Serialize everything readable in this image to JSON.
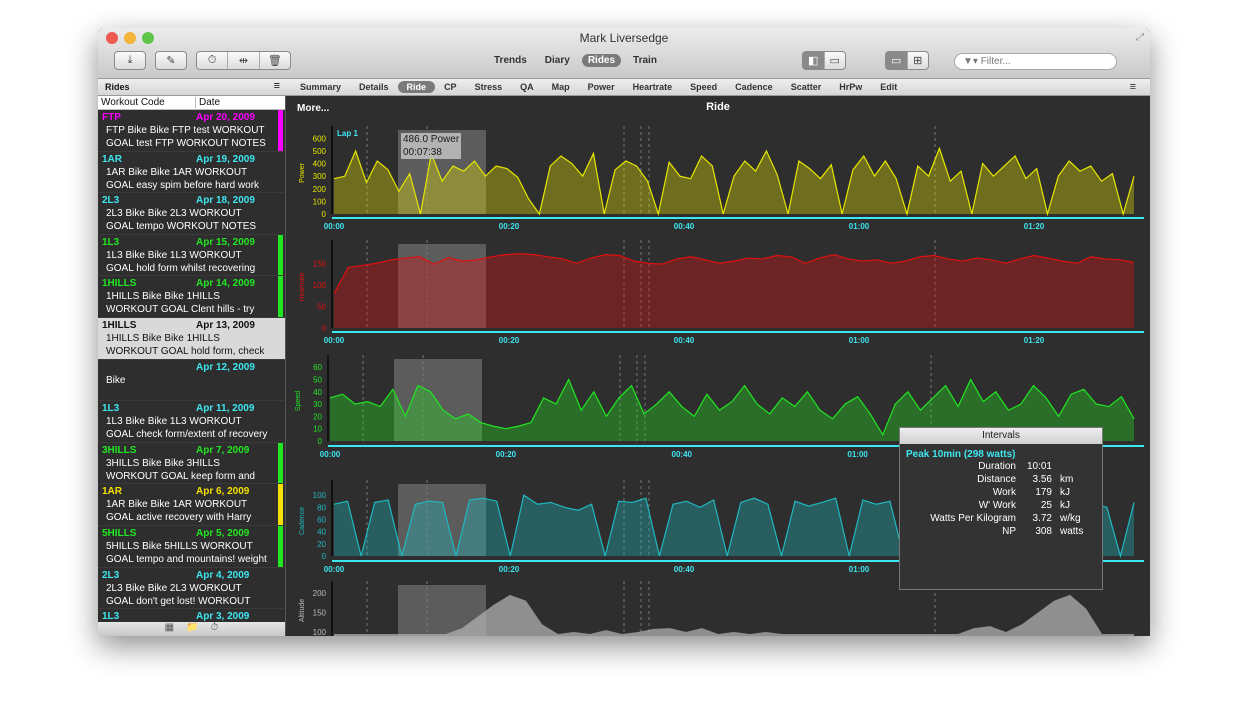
{
  "window": {
    "title": "Mark Liversedge"
  },
  "toolbar": {
    "icons": [
      "download-icon",
      "edit-icon",
      "stopwatch-icon",
      "split-icon",
      "trash-icon"
    ],
    "nav": [
      "Trends",
      "Diary",
      "Rides",
      "Train"
    ],
    "active_nav": "Rides",
    "filter_placeholder": "Filter..."
  },
  "sidebar": {
    "title": "Rides",
    "columns": [
      "Workout Code",
      "Date"
    ],
    "rows": [
      {
        "code": "FTP",
        "date": "Apr 20, 2009",
        "l1": "FTP Bike Bike FTP test WORKOUT",
        "l2": "GOAL test FTP  WORKOUT NOTES",
        "color": "#ff00ff",
        "bar": "#ff00ff"
      },
      {
        "code": "1AR",
        "date": "Apr 19, 2009",
        "l1": "1AR Bike Bike 1AR WORKOUT",
        "l2": "GOAL easy spim before hard work",
        "color": "#3ee6f0",
        "bar": ""
      },
      {
        "code": "2L3",
        "date": "Apr 18, 2009",
        "l1": "2L3 Bike Bike 2L3 WORKOUT",
        "l2": "GOAL tempo WORKOUT NOTES",
        "color": "#3ee6f0",
        "bar": ""
      },
      {
        "code": "1L3",
        "date": "Apr 15, 2009",
        "l1": "1L3 Bike Bike 1L3 WORKOUT",
        "l2": "GOAL hold form whilst recovering",
        "color": "#22e622",
        "bar": "#22e622"
      },
      {
        "code": "1HILLS",
        "date": "Apr 14, 2009",
        "l1": "1HILLS Bike Bike 1HILLS",
        "l2": "WORKOUT GOAL Clent hills - try",
        "color": "#22e622",
        "bar": "#22e622"
      },
      {
        "code": "1HILLS",
        "date": "Apr 13, 2009",
        "l1": "1HILLS Bike Bike 1HILLS",
        "l2": "WORKOUT GOAL hold form, check",
        "color": "#111",
        "bar": "",
        "selected": true
      },
      {
        "code": "",
        "date": "Apr 12, 2009",
        "l1": "Bike",
        "l2": "",
        "color": "#3ee6f0",
        "bar": ""
      },
      {
        "code": "1L3",
        "date": "Apr 11, 2009",
        "l1": "1L3 Bike Bike 1L3 WORKOUT",
        "l2": "GOAL check form/extent of recovery",
        "color": "#3ee6f0",
        "bar": ""
      },
      {
        "code": "3HILLS",
        "date": "Apr 7, 2009",
        "l1": "3HILLS Bike Bike 3HILLS",
        "l2": "WORKOUT GOAL keep form and",
        "color": "#22e622",
        "bar": "#22e622"
      },
      {
        "code": "1AR",
        "date": "Apr 6, 2009",
        "l1": "1AR Bike Bike 1AR WORKOUT",
        "l2": "GOAL active recovery with Harry",
        "color": "#f5e000",
        "bar": "#f5e000"
      },
      {
        "code": "5HILLS",
        "date": "Apr 5, 2009",
        "l1": "5HILLS Bike 5HILLS WORKOUT",
        "l2": "GOAL tempo and mountains! weight",
        "color": "#22e622",
        "bar": "#22e622"
      },
      {
        "code": "2L3",
        "date": "Apr 4, 2009",
        "l1": "2L3 Bike Bike 2L3 WORKOUT",
        "l2": "GOAL don't get lost! WORKOUT",
        "color": "#3ee6f0",
        "bar": ""
      },
      {
        "code": "1L3",
        "date": "Apr 3, 2009",
        "l1": "",
        "l2": "",
        "color": "#3ee6f0",
        "bar": ""
      }
    ]
  },
  "tabs": [
    "Summary",
    "Details",
    "Ride",
    "CP",
    "Stress",
    "QA",
    "Map",
    "Power",
    "Heartrate",
    "Speed",
    "Cadence",
    "Scatter",
    "HrPw",
    "Edit"
  ],
  "active_tab": "Ride",
  "content": {
    "more": "More...",
    "title": "Ride",
    "lap_label": "Lap 1",
    "tooltip": {
      "value": "486.0 Power",
      "time": "00:07:38"
    }
  },
  "intervals": {
    "title": "Intervals",
    "name": "Peak 10min (298 watts)",
    "rows": [
      {
        "k": "Duration",
        "v": "10:01",
        "u": ""
      },
      {
        "k": "Distance",
        "v": "3.56",
        "u": "km"
      },
      {
        "k": "Work",
        "v": "179",
        "u": "kJ"
      },
      {
        "k": "W' Work",
        "v": "25",
        "u": "kJ"
      },
      {
        "k": "Watts Per Kilogram",
        "v": "3.72",
        "u": "w/kg"
      },
      {
        "k": "NP",
        "v": "308",
        "u": "watts"
      }
    ]
  },
  "chart_data": [
    {
      "type": "area",
      "ylabel": "Power",
      "color": "#e6e600",
      "xticks": [
        "00:00",
        "00:20",
        "00:40",
        "01:00",
        "01:20"
      ],
      "yticks": [
        0,
        100,
        200,
        300,
        400,
        500,
        600
      ],
      "ylim": [
        0,
        650
      ],
      "xlim_min": [
        0,
        91
      ],
      "values": [
        280,
        300,
        500,
        250,
        420,
        350,
        180,
        320,
        0,
        480,
        260,
        380,
        340,
        420,
        300,
        380,
        360,
        290,
        120,
        0,
        380,
        460,
        400,
        300,
        480,
        0,
        350,
        420,
        380,
        260,
        0,
        410,
        300,
        280,
        460,
        380,
        0,
        300,
        420,
        340,
        500,
        310,
        0,
        420,
        360,
        280,
        390,
        0,
        350,
        460,
        300,
        420,
        280,
        0,
        380,
        300,
        520,
        260,
        340,
        0,
        400,
        300,
        380,
        460,
        280,
        360,
        0,
        300,
        420,
        340,
        380,
        260,
        320,
        0,
        300
      ]
    },
    {
      "type": "area",
      "ylabel": "Heartrate",
      "color": "#e01010",
      "xticks": [
        "00:00",
        "00:20",
        "00:40",
        "01:00",
        "01:20"
      ],
      "yticks": [
        0,
        50,
        100,
        150
      ],
      "ylim": [
        0,
        190
      ],
      "xlim_min": [
        0,
        91
      ],
      "values": [
        80,
        140,
        145,
        150,
        158,
        162,
        165,
        148,
        163,
        155,
        158,
        165,
        170,
        172,
        170,
        165,
        160,
        150,
        162,
        170,
        168,
        155,
        150,
        148,
        160,
        165,
        158,
        150,
        155,
        162,
        160,
        168,
        165,
        150,
        162,
        170,
        160,
        155,
        158,
        150,
        155,
        165,
        168,
        160,
        155,
        162,
        158,
        150,
        160,
        168,
        162,
        155,
        150,
        165,
        160,
        158,
        152
      ]
    },
    {
      "type": "area",
      "ylabel": "Speed",
      "color": "#22e622",
      "xticks": [
        "00:00",
        "00:20",
        "00:40",
        "01:00"
      ],
      "yticks": [
        0,
        10,
        20,
        30,
        40,
        50,
        60
      ],
      "ylim": [
        0,
        65
      ],
      "xlim_min": [
        0,
        91
      ],
      "values": [
        35,
        38,
        30,
        32,
        28,
        42,
        20,
        45,
        40,
        25,
        18,
        22,
        15,
        12,
        10,
        12,
        15,
        35,
        30,
        50,
        25,
        40,
        20,
        35,
        45,
        22,
        30,
        40,
        28,
        20,
        38,
        25,
        32,
        45,
        30,
        22,
        35,
        28,
        40,
        25,
        18,
        30,
        36,
        22,
        5,
        30,
        40,
        25,
        35,
        45,
        28,
        50,
        32,
        40,
        25,
        30,
        45,
        35,
        20,
        38,
        42,
        30,
        28,
        36,
        18
      ]
    },
    {
      "type": "area",
      "ylabel": "Cadence",
      "color": "#20b8c0",
      "xticks": [
        "00:00",
        "00:20",
        "00:40",
        "01:00"
      ],
      "yticks": [
        0,
        20,
        40,
        60,
        80,
        100
      ],
      "ylim": [
        0,
        115
      ],
      "xlim_min": [
        0,
        91
      ],
      "values": [
        85,
        90,
        0,
        88,
        92,
        0,
        85,
        90,
        88,
        0,
        92,
        95,
        90,
        0,
        100,
        85,
        88,
        80,
        75,
        85,
        0,
        90,
        88,
        95,
        0,
        85,
        90,
        80,
        92,
        0,
        88,
        95,
        85,
        0,
        90,
        82,
        88,
        95,
        0,
        92,
        85,
        90,
        0,
        88,
        80,
        95,
        85,
        0,
        90,
        88,
        92,
        85,
        0,
        88,
        90,
        95,
        85,
        80,
        0,
        88
      ]
    },
    {
      "type": "area",
      "ylabel": "Altitude",
      "color": "#b0b0b0",
      "yticks": [
        100,
        150,
        200
      ],
      "ylim": [
        95,
        215
      ],
      "xlim_min": [
        0,
        91
      ],
      "values": [
        90,
        90,
        90,
        90,
        90,
        90,
        90,
        95,
        110,
        140,
        170,
        195,
        180,
        120,
        95,
        100,
        95,
        105,
        90,
        100,
        108,
        110,
        100,
        110,
        95,
        100,
        90,
        100,
        90,
        95,
        90,
        90,
        95,
        90,
        90,
        90,
        92,
        90,
        95,
        90,
        110,
        115,
        100,
        120,
        150,
        180,
        195,
        160,
        95,
        90,
        90
      ]
    }
  ]
}
